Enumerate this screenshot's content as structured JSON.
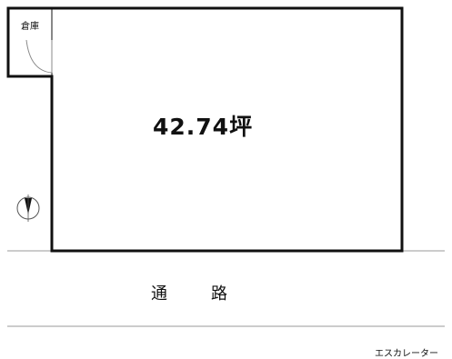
{
  "plan": {
    "storage_label": "倉庫",
    "area": "42.74坪",
    "corridor_label": "通路",
    "escalator_label": "エスカレーター"
  },
  "icons": {
    "compass": "north-arrow-icon",
    "door": "door-swing-icon"
  },
  "colors": {
    "wall": "#111111",
    "guide_line": "#999999",
    "background": "#ffffff"
  }
}
